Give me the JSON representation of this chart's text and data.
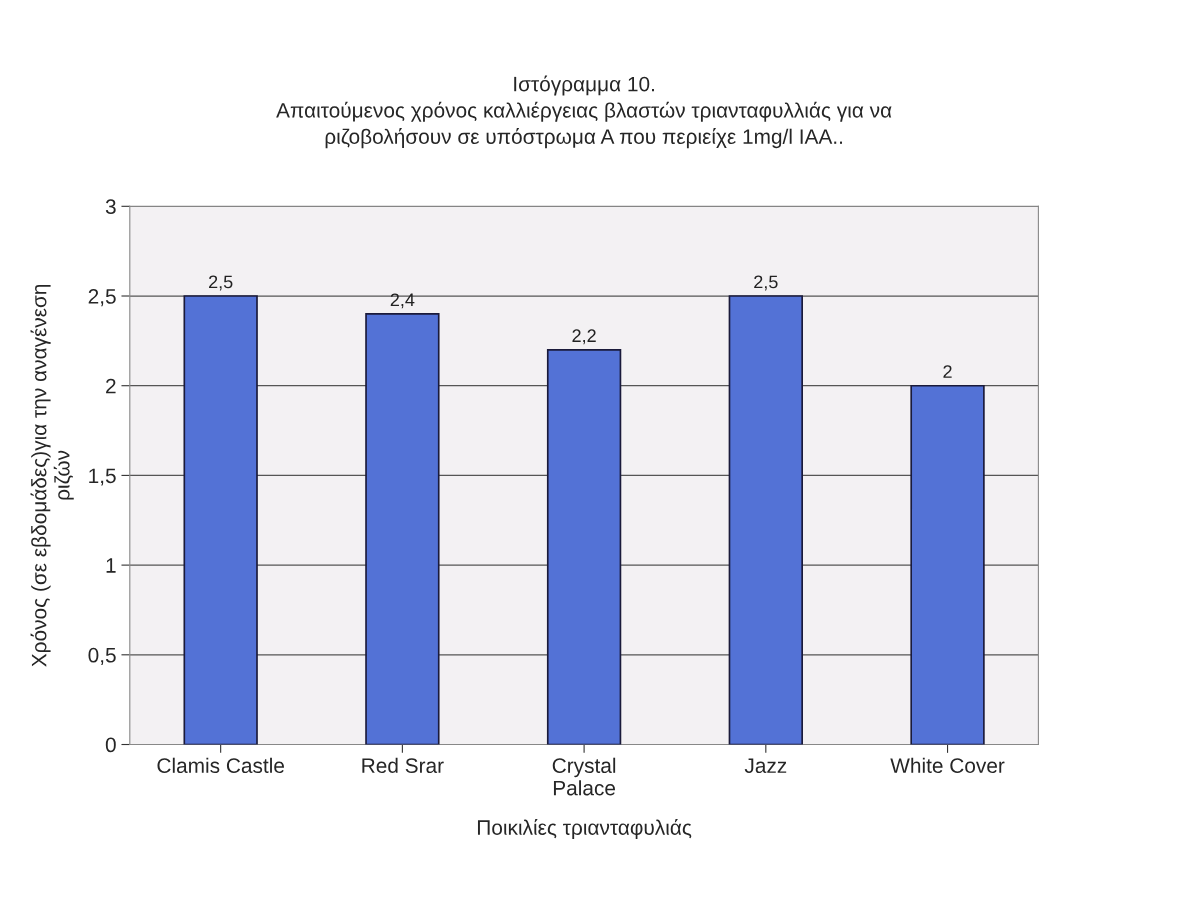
{
  "chart_data": {
    "type": "bar",
    "title": "Ιστόγραμμα 10.\nΑπαιτούμενος χρόνος καλλιέργειας βλαστών τριανταφυλλιάς για να\nριζοβολήσουν σε υπόστρωμα Α που περιείχε 1mg/l IAA..",
    "xlabel": "Ποικιλίες τριανταφυλιάς",
    "ylabel": "Χρόνος (σε εβδομάδες)για την αναγένεση\nριζών",
    "categories": [
      "Clamis Castle",
      "Red Srar",
      "Crystal\nPalace",
      "Jazz",
      "White Cover"
    ],
    "values": [
      2.5,
      2.4,
      2.2,
      2.5,
      2
    ],
    "value_labels": [
      "2,5",
      "2,4",
      "2,2",
      "2,5",
      "2"
    ],
    "color": "#5372d6",
    "ylim": [
      0,
      3
    ],
    "yticks": [
      0,
      {
        "value": 0.5,
        "label": "0,5"
      },
      1,
      {
        "value": 1.5,
        "label": "1,5"
      },
      2,
      {
        "value": 2.5,
        "label": "2,5"
      },
      3
    ],
    "grid": "y"
  }
}
